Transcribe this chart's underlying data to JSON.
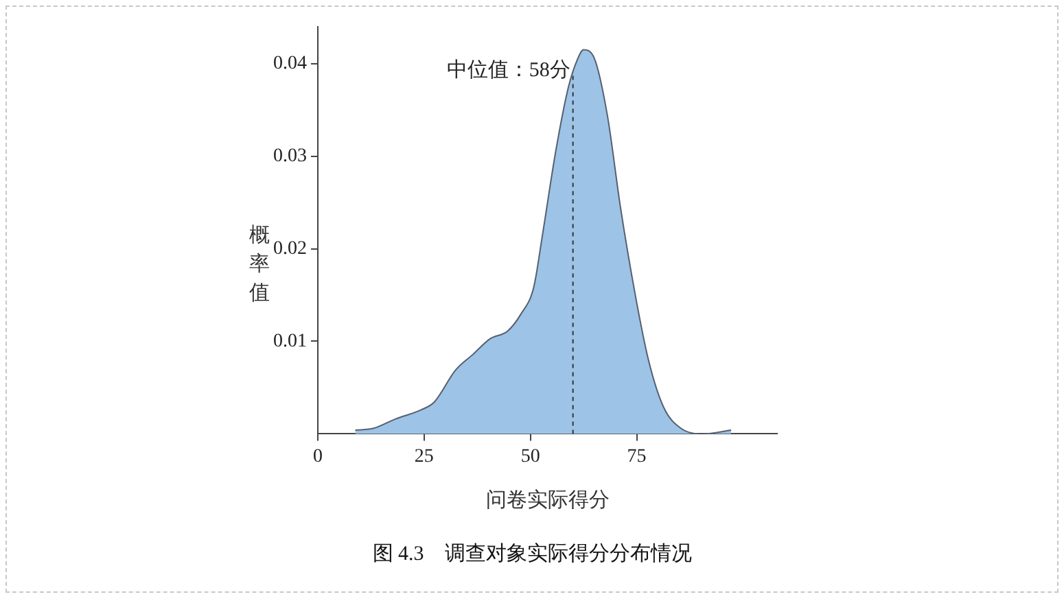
{
  "chart_data": {
    "type": "area",
    "title": "图 4.3　调查对象实际得分分布情况",
    "xlabel": "问卷实际得分",
    "ylabel": "概率值",
    "x": [
      8.8,
      13.1,
      18.2,
      24.3,
      27.3,
      32.4,
      36.5,
      40.6,
      44.6,
      47.7,
      50.8,
      52.8,
      55.9,
      58.9,
      61.0,
      62.5,
      65.0,
      68.1,
      71.2,
      74.7,
      77.8,
      81.3,
      85.4,
      90.5,
      97.2
    ],
    "series": [
      {
        "color": "#9dc3e6",
        "values": [
          0.0004,
          0.0006,
          0.0016,
          0.0026,
          0.0034,
          0.0069,
          0.0086,
          0.0103,
          0.0111,
          0.0129,
          0.0159,
          0.0214,
          0.0304,
          0.0374,
          0.0404,
          0.0415,
          0.0406,
          0.0344,
          0.0244,
          0.0149,
          0.0079,
          0.0029,
          0.0006,
          0.0,
          0.0004
        ]
      }
    ],
    "xlim": [
      0,
      108
    ],
    "xticks": [
      0,
      25,
      50,
      75
    ],
    "ylim": [
      0,
      0.044
    ],
    "yticks": [
      0.01,
      0.02,
      0.03,
      0.04
    ],
    "grid": false,
    "legend": false,
    "ref_lines": [
      {
        "axis": "x",
        "value": 60,
        "label": "中位值：58分",
        "line_style": "dashed",
        "color": "#333333"
      }
    ]
  }
}
